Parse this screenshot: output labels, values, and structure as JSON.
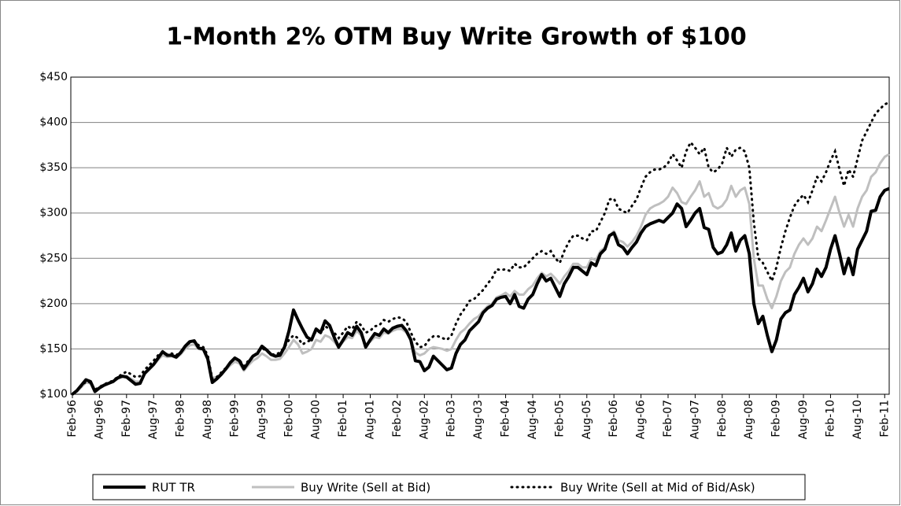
{
  "chart_data": {
    "type": "line",
    "title": "1-Month 2% OTM Buy Write Growth of $100",
    "categories": [
      "Feb-96",
      null,
      null,
      null,
      null,
      null,
      "Aug-96",
      null,
      null,
      null,
      null,
      null,
      "Feb-97",
      null,
      null,
      null,
      null,
      null,
      "Aug-97",
      null,
      null,
      null,
      null,
      null,
      "Feb-98",
      null,
      null,
      null,
      null,
      null,
      "Aug-98",
      null,
      null,
      null,
      null,
      null,
      "Feb-99",
      null,
      null,
      null,
      null,
      null,
      "Aug-99",
      null,
      null,
      null,
      null,
      null,
      "Feb-00",
      null,
      null,
      null,
      null,
      null,
      "Aug-00",
      null,
      null,
      null,
      null,
      null,
      "Feb-01",
      null,
      null,
      null,
      null,
      null,
      "Aug-01",
      null,
      null,
      null,
      null,
      null,
      "Feb-02",
      null,
      null,
      null,
      null,
      null,
      "Aug-02",
      null,
      null,
      null,
      null,
      null,
      "Feb-03",
      null,
      null,
      null,
      null,
      null,
      "Aug-03",
      null,
      null,
      null,
      null,
      null,
      "Feb-04",
      null,
      null,
      null,
      null,
      null,
      "Aug-04",
      null,
      null,
      null,
      null,
      null,
      "Feb-05",
      null,
      null,
      null,
      null,
      null,
      "Aug-05",
      null,
      null,
      null,
      null,
      null,
      "Feb-06",
      null,
      null,
      null,
      null,
      null,
      "Aug-06",
      null,
      null,
      null,
      null,
      null,
      "Feb-07",
      null,
      null,
      null,
      null,
      null,
      "Aug-07",
      null,
      null,
      null,
      null,
      null,
      "Feb-08",
      null,
      null,
      null,
      null,
      null,
      "Aug-08",
      null,
      null,
      null,
      null,
      null,
      "Feb-09",
      null,
      null,
      null,
      null,
      null,
      "Aug-09",
      null,
      null,
      null,
      null,
      null,
      "Feb-10",
      null,
      null,
      null,
      null,
      null,
      "Aug-10",
      null,
      null,
      null,
      null,
      null,
      "Feb-11",
      null
    ],
    "series": [
      {
        "name": "RUT TR",
        "color": "#000000",
        "width": 4,
        "style": "solid",
        "values": [
          100,
          104,
          110,
          116,
          114,
          103,
          107,
          110,
          112,
          114,
          118,
          120,
          119,
          115,
          111,
          112,
          123,
          128,
          133,
          140,
          147,
          143,
          143,
          141,
          146,
          153,
          158,
          159,
          151,
          150,
          139,
          113,
          117,
          122,
          128,
          135,
          140,
          137,
          128,
          135,
          142,
          145,
          153,
          149,
          144,
          142,
          143,
          152,
          170,
          193,
          182,
          172,
          163,
          160,
          172,
          168,
          181,
          176,
          163,
          152,
          160,
          168,
          165,
          175,
          168,
          152,
          160,
          167,
          165,
          172,
          168,
          173,
          175,
          176,
          170,
          160,
          137,
          136,
          126,
          130,
          142,
          137,
          132,
          127,
          129,
          145,
          155,
          160,
          170,
          175,
          180,
          190,
          195,
          198,
          205,
          207,
          208,
          200,
          210,
          197,
          195,
          205,
          210,
          222,
          232,
          225,
          228,
          218,
          208,
          222,
          230,
          240,
          240,
          236,
          232,
          245,
          242,
          255,
          260,
          275,
          278,
          265,
          262,
          255,
          262,
          268,
          278,
          285,
          288,
          290,
          292,
          290,
          295,
          300,
          310,
          305,
          285,
          292,
          300,
          305,
          284,
          282,
          262,
          255,
          257,
          265,
          278,
          258,
          270,
          275,
          255,
          200,
          178,
          186,
          165,
          147,
          160,
          183,
          190,
          193,
          210,
          218,
          228,
          213,
          222,
          238,
          230,
          240,
          260,
          275,
          255,
          233,
          250,
          232,
          260,
          270,
          280,
          302,
          303,
          318,
          325,
          327
        ]
      },
      {
        "name": "Buy Write (Sell at Bid)",
        "color": "#bfbfbf",
        "width": 3,
        "style": "solid",
        "values": [
          100,
          103,
          108,
          113,
          112,
          104,
          107,
          110,
          112,
          114,
          117,
          119,
          120,
          117,
          114,
          114,
          122,
          127,
          132,
          138,
          143,
          141,
          142,
          140,
          144,
          150,
          154,
          155,
          150,
          149,
          140,
          118,
          119,
          123,
          127,
          132,
          136,
          134,
          126,
          132,
          137,
          140,
          145,
          142,
          138,
          138,
          139,
          145,
          152,
          160,
          155,
          145,
          147,
          150,
          160,
          158,
          165,
          163,
          158,
          152,
          158,
          163,
          162,
          170,
          165,
          155,
          158,
          163,
          162,
          168,
          167,
          170,
          172,
          172,
          168,
          160,
          146,
          143,
          145,
          150,
          152,
          151,
          150,
          148,
          150,
          160,
          168,
          172,
          178,
          183,
          186,
          192,
          197,
          200,
          207,
          209,
          212,
          208,
          214,
          210,
          210,
          216,
          220,
          228,
          234,
          230,
          233,
          228,
          222,
          230,
          236,
          244,
          244,
          240,
          240,
          250,
          248,
          258,
          262,
          275,
          280,
          270,
          268,
          263,
          268,
          275,
          285,
          298,
          305,
          308,
          310,
          313,
          318,
          328,
          322,
          312,
          310,
          318,
          325,
          335,
          318,
          322,
          308,
          305,
          308,
          315,
          330,
          318,
          325,
          328,
          310,
          250,
          220,
          220,
          205,
          195,
          208,
          225,
          235,
          240,
          255,
          265,
          272,
          265,
          272,
          285,
          280,
          292,
          305,
          318,
          300,
          285,
          298,
          285,
          305,
          318,
          325,
          340,
          345,
          355,
          362,
          365
        ]
      },
      {
        "name": "Buy Write (Sell at Mid of Bid/Ask)",
        "color": "#000000",
        "width": 3,
        "style": "dotted",
        "values": [
          100,
          104,
          109,
          114,
          113,
          105,
          108,
          111,
          113,
          115,
          119,
          122,
          125,
          122,
          119,
          120,
          127,
          132,
          137,
          143,
          147,
          144,
          145,
          143,
          147,
          153,
          157,
          158,
          154,
          152,
          143,
          117,
          119,
          124,
          129,
          135,
          140,
          138,
          131,
          137,
          142,
          146,
          151,
          148,
          144,
          144,
          146,
          152,
          160,
          165,
          162,
          155,
          158,
          160,
          170,
          168,
          175,
          172,
          168,
          162,
          168,
          175,
          172,
          180,
          176,
          168,
          170,
          175,
          176,
          182,
          180,
          183,
          185,
          184,
          180,
          168,
          158,
          152,
          153,
          160,
          164,
          164,
          162,
          160,
          165,
          178,
          188,
          195,
          203,
          205,
          210,
          215,
          222,
          228,
          238,
          237,
          238,
          236,
          244,
          240,
          240,
          245,
          250,
          255,
          258,
          255,
          258,
          250,
          245,
          258,
          268,
          275,
          275,
          272,
          270,
          280,
          280,
          290,
          300,
          315,
          316,
          305,
          302,
          300,
          308,
          315,
          328,
          340,
          345,
          348,
          348,
          350,
          355,
          365,
          358,
          350,
          368,
          378,
          372,
          365,
          372,
          350,
          345,
          348,
          355,
          372,
          362,
          370,
          372,
          368,
          350,
          290,
          250,
          245,
          235,
          225,
          240,
          262,
          280,
          295,
          308,
          315,
          320,
          312,
          325,
          340,
          335,
          345,
          358,
          368,
          348,
          330,
          348,
          340,
          360,
          380,
          390,
          400,
          410,
          415,
          420,
          422
        ]
      }
    ],
    "ylim": [
      100,
      450
    ],
    "yticks": [
      {
        "value": 100,
        "label": "$100"
      },
      {
        "value": 150,
        "label": "$150"
      },
      {
        "value": 200,
        "label": "$200"
      },
      {
        "value": 250,
        "label": "$250"
      },
      {
        "value": 300,
        "label": "$300"
      },
      {
        "value": 350,
        "label": "$350"
      },
      {
        "value": 400,
        "label": "$400"
      },
      {
        "value": 450,
        "label": "$450"
      }
    ],
    "grid": true,
    "legend": "bottom"
  }
}
